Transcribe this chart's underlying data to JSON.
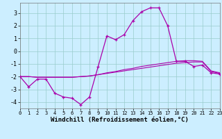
{
  "xlabel": "Windchill (Refroidissement éolien,°C)",
  "line1_x": [
    0,
    1,
    2,
    3,
    4,
    5,
    6,
    7,
    8,
    9,
    10,
    11,
    12,
    13,
    14,
    15,
    16,
    17,
    18,
    19,
    20,
    21,
    22,
    23
  ],
  "line1_y": [
    -2.0,
    -2.8,
    -2.2,
    -2.2,
    -3.3,
    -3.6,
    -3.7,
    -4.2,
    -3.6,
    -1.2,
    1.2,
    0.9,
    1.3,
    2.4,
    3.1,
    3.4,
    3.4,
    2.0,
    -0.8,
    -0.8,
    -1.2,
    -1.1,
    -1.7,
    -1.8
  ],
  "line2_x": [
    0,
    1,
    2,
    3,
    4,
    5,
    6,
    7,
    8,
    9,
    10,
    11,
    12,
    13,
    14,
    15,
    16,
    17,
    18,
    19,
    20,
    21,
    22,
    23
  ],
  "line2_y": [
    -2.0,
    -2.0,
    -2.05,
    -2.05,
    -2.05,
    -2.05,
    -2.05,
    -2.0,
    -1.95,
    -1.85,
    -1.75,
    -1.65,
    -1.55,
    -1.45,
    -1.35,
    -1.25,
    -1.15,
    -1.05,
    -0.95,
    -0.9,
    -0.85,
    -0.85,
    -1.6,
    -1.75
  ],
  "line3_x": [
    0,
    1,
    2,
    3,
    4,
    5,
    6,
    7,
    8,
    9,
    10,
    11,
    12,
    13,
    14,
    15,
    16,
    17,
    18,
    19,
    20,
    21,
    22,
    23
  ],
  "line3_y": [
    -2.0,
    -2.0,
    -2.05,
    -2.05,
    -2.05,
    -2.05,
    -2.05,
    -2.0,
    -1.95,
    -1.85,
    -1.7,
    -1.6,
    -1.45,
    -1.35,
    -1.2,
    -1.1,
    -1.0,
    -0.9,
    -0.8,
    -0.75,
    -0.75,
    -0.8,
    -1.55,
    -1.7
  ],
  "line_color": "#aa00aa",
  "bg_color": "#cceeff",
  "grid_color": "#99cccc",
  "xlabel_fontsize": 6.5,
  "tick_fontsize": 6,
  "xlim": [
    0,
    23
  ],
  "ylim": [
    -4.5,
    3.8
  ],
  "yticks": [
    -4,
    -3,
    -2,
    -1,
    0,
    1,
    2,
    3
  ],
  "xticks": [
    0,
    1,
    2,
    3,
    4,
    5,
    6,
    7,
    8,
    9,
    10,
    11,
    12,
    13,
    14,
    15,
    16,
    17,
    18,
    19,
    20,
    21,
    22,
    23
  ]
}
